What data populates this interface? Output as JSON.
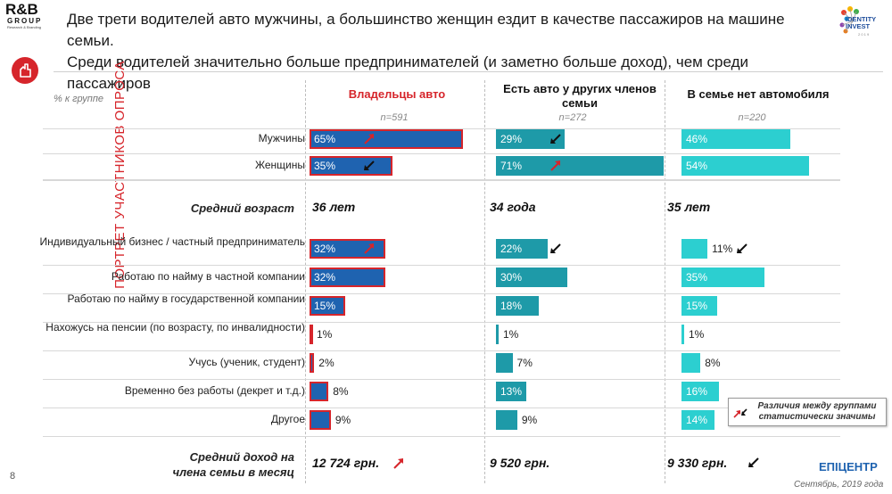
{
  "brand": {
    "rb_logo": "R&B",
    "rb_group": "GROUP",
    "rb_sub": "Research & Branding",
    "ii_logo": "IDENTITY INVEST",
    "ii_year": "2 0 1 9",
    "footer_logo": "ЕПІЦЕНТР"
  },
  "headline": {
    "line1": "Две трети водителей авто мужчины, а большинство женщин ездит в качестве пассажиров на машине семьи.",
    "line2": "Среди водителей значительно больше предпринимателей (и заметно больше доход), чем среди пассажиров"
  },
  "side_label": "ПОРТРЕТ УЧАСТНИКОВ ОПРОСА",
  "percent_label": "% к группе",
  "colors": {
    "owners": "#1f63b0",
    "family": "#1e9aa8",
    "nocar": "#2ccfd0",
    "accent": "#d6252b"
  },
  "chart_data": {
    "type": "bar",
    "orientation": "horizontal",
    "unit": "%",
    "groups": [
      {
        "name": "Владельцы авто",
        "n": "n=591",
        "avg_age": "36 лет",
        "income": "12 724 грн.",
        "income_arrow": "up"
      },
      {
        "name": "Есть авто у других членов семьи",
        "n": "n=272",
        "avg_age": "34 года",
        "income": "9 520 грн.",
        "income_arrow": "none"
      },
      {
        "name": "В семье нет автомобиля",
        "n": "n=220",
        "avg_age": "35 лет",
        "income": "9 330 грн.",
        "income_arrow": "down"
      }
    ],
    "sections": [
      {
        "rows": [
          {
            "label": "Мужчины",
            "values": [
              65,
              29,
              46
            ],
            "arrows": [
              "up",
              "down",
              "none"
            ],
            "highlight": [
              true,
              false,
              false
            ]
          },
          {
            "label": "Женщины",
            "values": [
              35,
              71,
              54
            ],
            "arrows": [
              "down",
              "up",
              "none"
            ],
            "highlight": [
              true,
              false,
              false
            ]
          }
        ]
      },
      {
        "rows": [
          {
            "label": "Индивидуальный бизнес / частный предприниматель",
            "values": [
              32,
              22,
              11
            ],
            "arrows": [
              "up",
              "down",
              "down"
            ],
            "highlight": [
              true,
              false,
              false
            ]
          },
          {
            "label": "Работаю по найму в частной компании",
            "values": [
              32,
              30,
              35
            ],
            "arrows": [
              "none",
              "none",
              "none"
            ],
            "highlight": [
              true,
              false,
              false
            ]
          },
          {
            "label": "Работаю по найму в государственной компании",
            "values": [
              15,
              18,
              15
            ],
            "arrows": [
              "none",
              "none",
              "none"
            ],
            "highlight": [
              true,
              false,
              false
            ]
          },
          {
            "label": "Нахожусь на пенсии (по возрасту, по инвалидности)",
            "values": [
              1,
              1,
              1
            ],
            "arrows": [
              "none",
              "none",
              "none"
            ],
            "highlight": [
              true,
              false,
              false
            ]
          },
          {
            "label": "Учусь (ученик, студент)",
            "values": [
              2,
              7,
              8
            ],
            "arrows": [
              "none",
              "none",
              "none"
            ],
            "highlight": [
              true,
              false,
              false
            ]
          },
          {
            "label": "Временно без работы (декрет и т.д.)",
            "values": [
              8,
              13,
              16
            ],
            "arrows": [
              "none",
              "none",
              "none"
            ],
            "highlight": [
              true,
              false,
              false
            ]
          },
          {
            "label": "Другое",
            "values": [
              9,
              9,
              14
            ],
            "arrows": [
              "none",
              "none",
              "none"
            ],
            "highlight": [
              true,
              false,
              false
            ]
          }
        ]
      }
    ],
    "avg_age_label": "Средний возраст",
    "income_label_1": "Средний доход на",
    "income_label_2": "члена семьи в месяц"
  },
  "legend": {
    "line1": "Различия между группами",
    "line2": "статистически значимы"
  },
  "footer": {
    "page": "8",
    "date": "Сентябрь, 2019 года"
  }
}
